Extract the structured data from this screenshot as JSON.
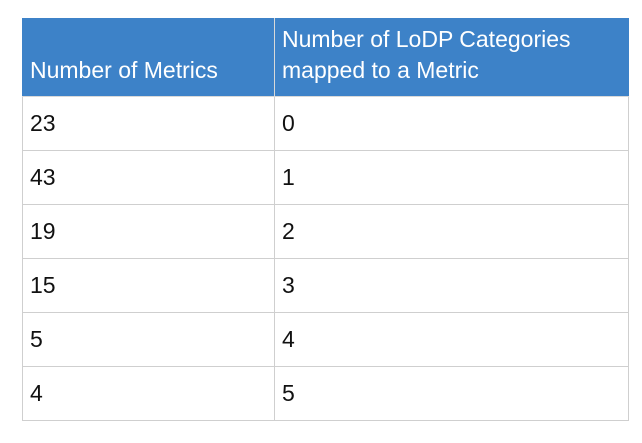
{
  "table": {
    "headers": [
      "Number of Metrics",
      "Number of LoDP Categories mapped to a Metric"
    ],
    "rows": [
      [
        "23",
        "0"
      ],
      [
        "43",
        "1"
      ],
      [
        "19",
        "2"
      ],
      [
        "15",
        "3"
      ],
      [
        "5",
        "4"
      ],
      [
        "4",
        "5"
      ]
    ]
  },
  "colors": {
    "header_bg": "#3d82c8",
    "header_text": "#ffffff",
    "cell_text": "#111111",
    "border": "#cfcfcf"
  }
}
